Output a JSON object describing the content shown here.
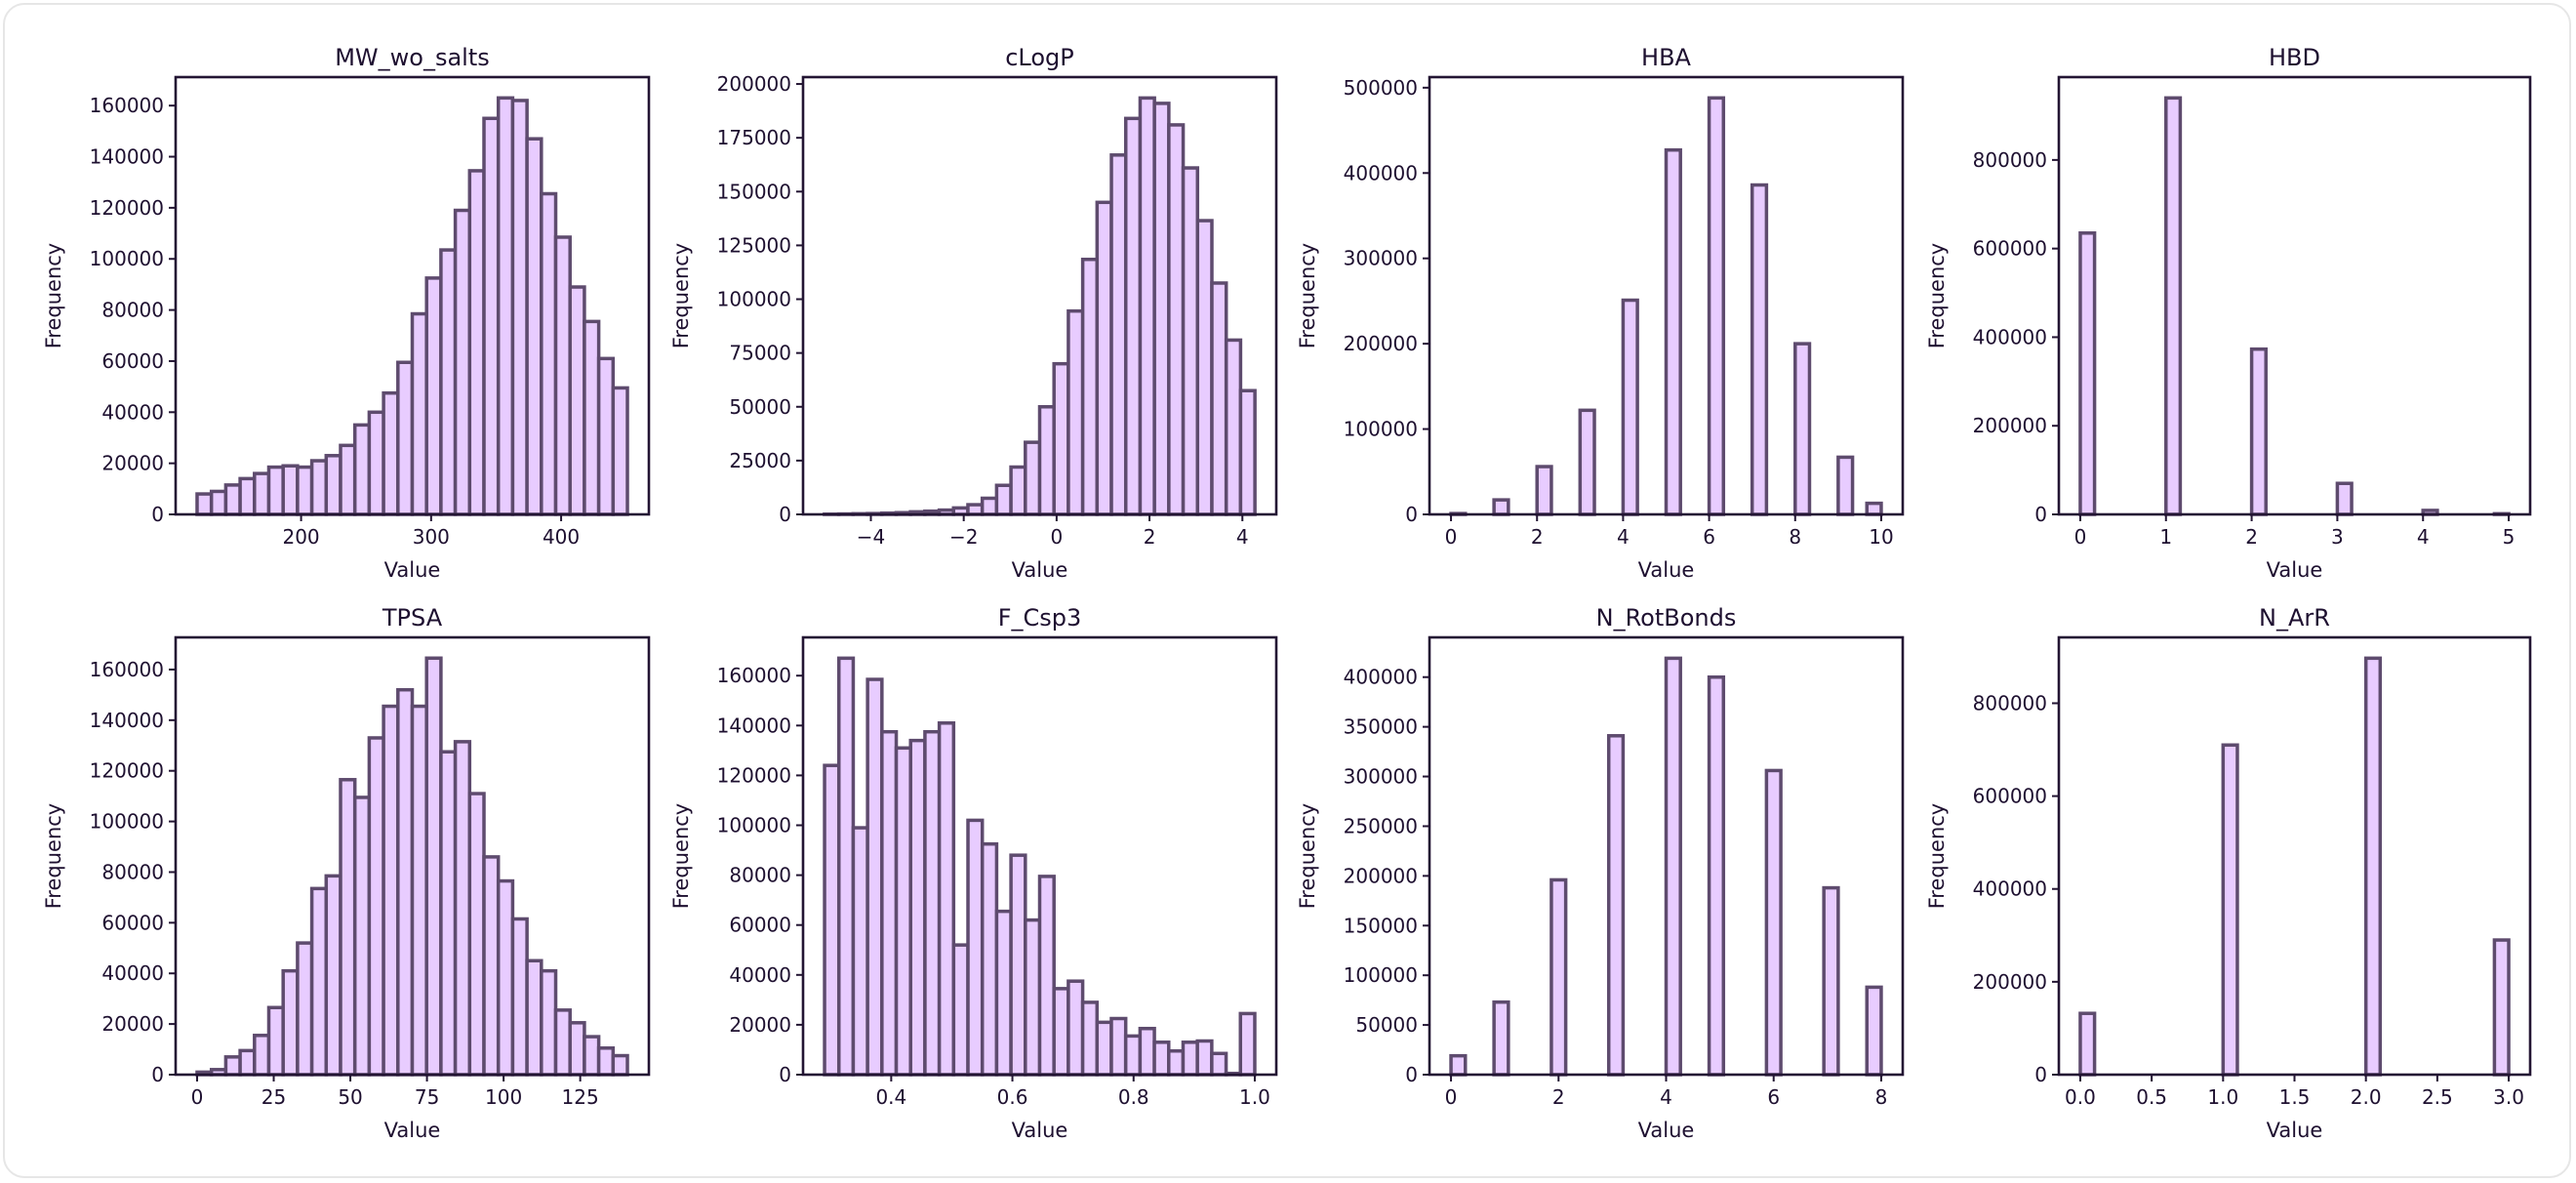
{
  "style": {
    "bar_fill": "#e8ccff",
    "bar_edge": "#5e4b6e",
    "axis_color": "#231533",
    "frame_border": "#e6e6e6"
  },
  "chart_data": [
    {
      "type": "bar",
      "title": "MW_wo_salts",
      "xlabel": "Value",
      "ylabel": "Frequency",
      "bin_range": [
        120,
        451
      ],
      "n_bins": 30,
      "values": [
        8000,
        9000,
        11500,
        14000,
        16000,
        18500,
        19000,
        18500,
        21000,
        23000,
        27000,
        35000,
        40000,
        47500,
        59500,
        78500,
        92500,
        103500,
        119000,
        134500,
        155000,
        163000,
        162000,
        147000,
        125500,
        108500,
        89000,
        75500,
        61000,
        49500
      ],
      "xlim": [
        103.5,
        467.5
      ],
      "ylim": [
        0,
        171150
      ],
      "xticks": [
        200,
        300,
        400
      ],
      "xtick_labels": [
        "200",
        "300",
        "400"
      ],
      "yticks": [
        0,
        20000,
        40000,
        60000,
        80000,
        100000,
        120000,
        140000,
        160000
      ],
      "ytick_labels": [
        "0",
        "20000",
        "40000",
        "60000",
        "80000",
        "100000",
        "120000",
        "140000",
        "160000"
      ],
      "grid": false
    },
    {
      "type": "bar",
      "title": "cLogP",
      "xlabel": "Value",
      "ylabel": "Frequency",
      "bin_range": [
        -5.0,
        4.27
      ],
      "n_bins": 30,
      "values": [
        100,
        200,
        300,
        400,
        600,
        800,
        1200,
        1500,
        2000,
        3000,
        4500,
        7500,
        13500,
        22000,
        33500,
        50000,
        70000,
        94500,
        118500,
        145000,
        167000,
        184000,
        193500,
        191000,
        181000,
        161000,
        136500,
        107500,
        81000,
        57500
      ],
      "xlim": [
        -5.46,
        4.73
      ],
      "ylim": [
        0,
        203200
      ],
      "xticks": [
        -4,
        -2,
        0,
        2,
        4
      ],
      "xtick_labels": [
        "−4",
        "−2",
        "0",
        "2",
        "4"
      ],
      "yticks": [
        0,
        25000,
        50000,
        75000,
        100000,
        125000,
        150000,
        175000,
        200000
      ],
      "ytick_labels": [
        "0",
        "25000",
        "50000",
        "75000",
        "100000",
        "125000",
        "150000",
        "175000",
        "200000"
      ],
      "grid": false
    },
    {
      "type": "bar",
      "title": "HBA",
      "xlabel": "Value",
      "ylabel": "Frequency",
      "bin_range": [
        0,
        10
      ],
      "n_bins": 30,
      "x": [
        0,
        1,
        2,
        3,
        4,
        5,
        6,
        7,
        8,
        9,
        10
      ],
      "values": [
        1000,
        17000,
        56000,
        122000,
        251000,
        427000,
        488000,
        386000,
        200000,
        67000,
        13000
      ],
      "xlim": [
        -0.5,
        10.5
      ],
      "ylim": [
        0,
        512400
      ],
      "xticks": [
        0,
        2,
        4,
        6,
        8,
        10
      ],
      "xtick_labels": [
        "0",
        "2",
        "4",
        "6",
        "8",
        "10"
      ],
      "yticks": [
        0,
        100000,
        200000,
        300000,
        400000,
        500000
      ],
      "ytick_labels": [
        "0",
        "100000",
        "200000",
        "300000",
        "400000",
        "500000"
      ],
      "grid": false
    },
    {
      "type": "bar",
      "title": "HBD",
      "xlabel": "Value",
      "ylabel": "Frequency",
      "bin_range": [
        0,
        5
      ],
      "n_bins": 30,
      "x": [
        0,
        1,
        2,
        3,
        4,
        5
      ],
      "values": [
        635000,
        940000,
        373000,
        70000,
        9000,
        1500
      ],
      "xlim": [
        -0.25,
        5.25
      ],
      "ylim": [
        0,
        987000
      ],
      "xticks": [
        0,
        1,
        2,
        3,
        4,
        5
      ],
      "xtick_labels": [
        "0",
        "1",
        "2",
        "3",
        "4",
        "5"
      ],
      "yticks": [
        0,
        200000,
        400000,
        600000,
        800000
      ],
      "ytick_labels": [
        "0",
        "200000",
        "400000",
        "600000",
        "800000"
      ],
      "grid": false
    },
    {
      "type": "bar",
      "title": "TPSA",
      "xlabel": "Value",
      "ylabel": "Frequency",
      "bin_range": [
        0,
        140.4
      ],
      "n_bins": 30,
      "values": [
        1000,
        2000,
        7000,
        9500,
        15500,
        26500,
        41000,
        52000,
        73500,
        78500,
        116500,
        109500,
        133000,
        145500,
        152000,
        145500,
        164500,
        127500,
        131500,
        111000,
        86000,
        76500,
        61500,
        45000,
        41000,
        25500,
        20500,
        15000,
        10500,
        7500
      ],
      "xlim": [
        -7,
        147.4
      ],
      "ylim": [
        0,
        172700
      ],
      "xticks": [
        0,
        25,
        50,
        75,
        100,
        125
      ],
      "xtick_labels": [
        "0",
        "25",
        "50",
        "75",
        "100",
        "125"
      ],
      "yticks": [
        0,
        20000,
        40000,
        60000,
        80000,
        100000,
        120000,
        140000,
        160000
      ],
      "ytick_labels": [
        "0",
        "20000",
        "40000",
        "60000",
        "80000",
        "100000",
        "120000",
        "140000",
        "160000"
      ],
      "grid": false
    },
    {
      "type": "bar",
      "title": "F_Csp3",
      "xlabel": "Value",
      "ylabel": "Frequency",
      "bin_range": [
        0.29,
        1.0
      ],
      "n_bins": 30,
      "values": [
        124000,
        167000,
        99000,
        158500,
        137500,
        131000,
        134000,
        137500,
        141000,
        52000,
        102000,
        92500,
        65500,
        88000,
        62000,
        79500,
        34500,
        37500,
        29000,
        21000,
        22500,
        15500,
        18500,
        13000,
        9500,
        13000,
        13500,
        8500,
        500,
        24500
      ],
      "xlim": [
        0.2545,
        1.0355
      ],
      "ylim": [
        0,
        175350
      ],
      "xticks": [
        0.4,
        0.6,
        0.8,
        1.0
      ],
      "xtick_labels": [
        "0.4",
        "0.6",
        "0.8",
        "1.0"
      ],
      "yticks": [
        0,
        20000,
        40000,
        60000,
        80000,
        100000,
        120000,
        140000,
        160000
      ],
      "ytick_labels": [
        "0",
        "20000",
        "40000",
        "60000",
        "80000",
        "100000",
        "120000",
        "140000",
        "160000"
      ],
      "grid": false
    },
    {
      "type": "bar",
      "title": "N_RotBonds",
      "xlabel": "Value",
      "ylabel": "Frequency",
      "bin_range": [
        0,
        8
      ],
      "n_bins": 30,
      "x": [
        0,
        1,
        2,
        3,
        4,
        5,
        6,
        7,
        8
      ],
      "values": [
        19000,
        73000,
        196000,
        341000,
        419000,
        400000,
        306000,
        188000,
        88000
      ],
      "xlim": [
        -0.4,
        8.4
      ],
      "ylim": [
        0,
        440000
      ],
      "xticks": [
        0,
        2,
        4,
        6,
        8
      ],
      "xtick_labels": [
        "0",
        "2",
        "4",
        "6",
        "8"
      ],
      "yticks": [
        0,
        50000,
        100000,
        150000,
        200000,
        250000,
        300000,
        350000,
        400000
      ],
      "ytick_labels": [
        "0",
        "50000",
        "100000",
        "150000",
        "200000",
        "250000",
        "300000",
        "350000",
        "400000"
      ],
      "grid": false
    },
    {
      "type": "bar",
      "title": "N_ArR",
      "xlabel": "Value",
      "ylabel": "Frequency",
      "bin_range": [
        0,
        3
      ],
      "n_bins": 30,
      "x": [
        0,
        1,
        2,
        3
      ],
      "values": [
        132000,
        710000,
        897000,
        290000
      ],
      "xlim": [
        -0.15,
        3.15
      ],
      "ylim": [
        0,
        941850
      ],
      "xticks": [
        0,
        0.5,
        1,
        1.5,
        2,
        2.5,
        3
      ],
      "xtick_labels": [
        "0.0",
        "0.5",
        "1.0",
        "1.5",
        "2.0",
        "2.5",
        "3.0"
      ],
      "yticks": [
        0,
        200000,
        400000,
        600000,
        800000
      ],
      "ytick_labels": [
        "0",
        "200000",
        "400000",
        "600000",
        "800000"
      ],
      "grid": false
    }
  ]
}
